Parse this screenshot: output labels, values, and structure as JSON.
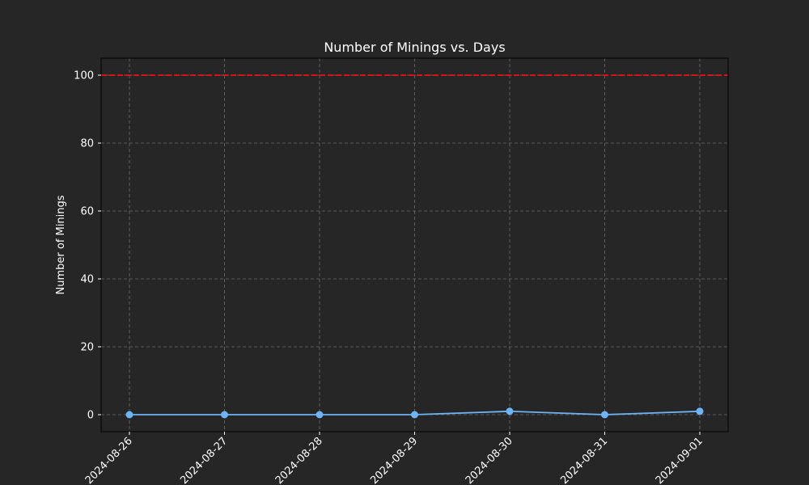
{
  "chart_data": {
    "type": "line",
    "title": "Number of Minings vs. Days",
    "xlabel": "",
    "ylabel": "Number of Minings",
    "x": [
      "2024-08-26",
      "2024-08-27",
      "2024-08-28",
      "2024-08-29",
      "2024-08-30",
      "2024-08-31",
      "2024-09-01"
    ],
    "series": [
      {
        "values": [
          0,
          0,
          0,
          0,
          1,
          0,
          1
        ],
        "color": "#6cb4f5",
        "marker": "circle"
      }
    ],
    "reference_lines": [
      {
        "orientation": "horizontal",
        "y": 100,
        "color": "#dd1111",
        "style": "dashed"
      }
    ],
    "ylim": [
      -5,
      105
    ],
    "yticks": [
      0,
      20,
      40,
      60,
      80,
      100
    ],
    "grid": true,
    "legend": "none",
    "colors": {
      "background": "#262626",
      "text": "#ffffff",
      "grid": "#6e6e6e",
      "axes": "#000000"
    }
  }
}
